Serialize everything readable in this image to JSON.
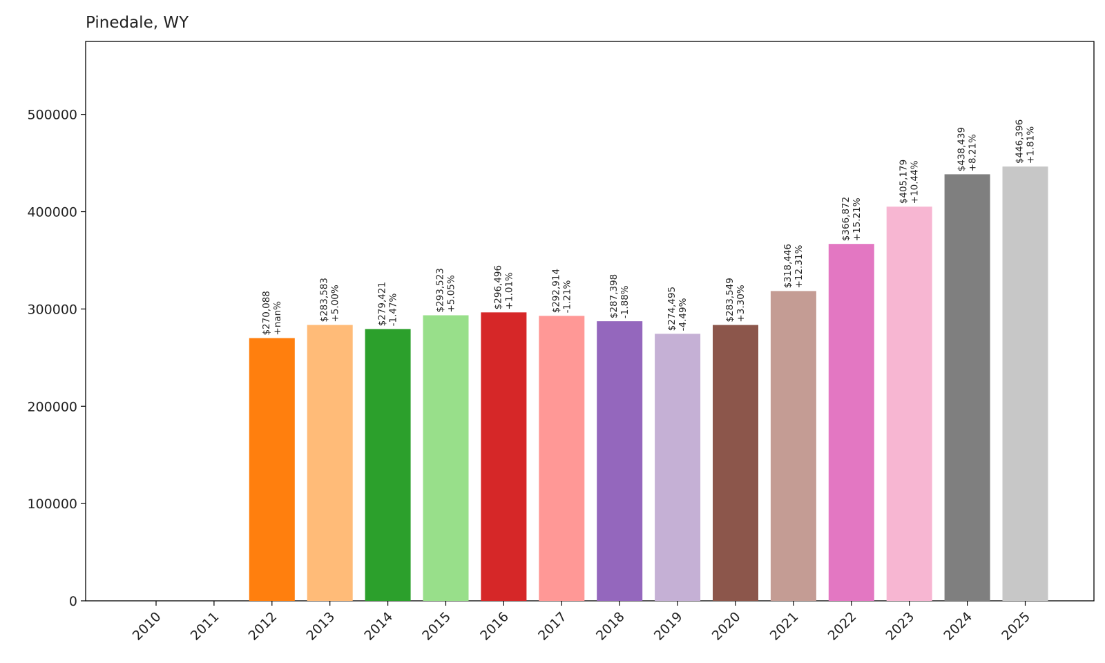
{
  "chart_data": {
    "type": "bar",
    "title": "Pinedale, WY",
    "xlabel": "",
    "ylabel": "",
    "ylim": [
      0,
      575000
    ],
    "yticks": [
      0,
      100000,
      200000,
      300000,
      400000,
      500000
    ],
    "ytick_labels": [
      "0",
      "100000",
      "200000",
      "300000",
      "400000",
      "500000"
    ],
    "grid": false,
    "categories": [
      "2010",
      "2011",
      "2012",
      "2013",
      "2014",
      "2015",
      "2016",
      "2017",
      "2018",
      "2019",
      "2020",
      "2021",
      "2022",
      "2023",
      "2024",
      "2025"
    ],
    "values": [
      0,
      0,
      270088,
      283583,
      279421,
      293523,
      296496,
      292914,
      287398,
      274495,
      283549,
      318446,
      366872,
      405179,
      438439,
      446396
    ],
    "value_labels": [
      "",
      "",
      "$270,088",
      "$283,583",
      "$279,421",
      "$293,523",
      "$296,496",
      "$292,914",
      "$287,398",
      "$274,495",
      "$283,549",
      "$318,446",
      "$366,872",
      "$405,179",
      "$438,439",
      "$446,396"
    ],
    "change_labels": [
      "",
      "",
      "+nan%",
      "+5.00%",
      "-1.47%",
      "+5.05%",
      "+1.01%",
      "-1.21%",
      "-1.88%",
      "-4.49%",
      "+3.30%",
      "+12.31%",
      "+15.21%",
      "+10.44%",
      "+8.21%",
      "+1.81%"
    ],
    "colors": [
      "#1f77b4",
      "#aec7e8",
      "#ff7f0e",
      "#ffbb78",
      "#2ca02c",
      "#98df8a",
      "#d62728",
      "#ff9896",
      "#9467bd",
      "#c5b0d5",
      "#8c564b",
      "#c49c94",
      "#e377c2",
      "#f7b6d2",
      "#7f7f7f",
      "#c7c7c7"
    ]
  }
}
